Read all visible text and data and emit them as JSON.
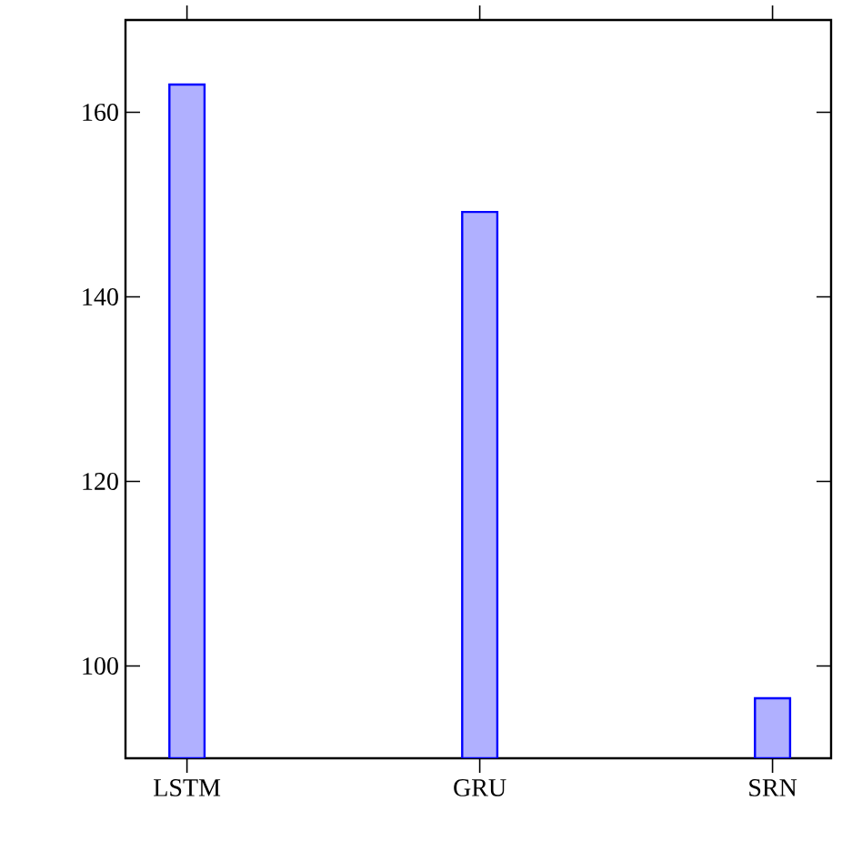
{
  "chart_data": {
    "type": "bar",
    "categories": [
      "LSTM",
      "GRU",
      "SRN"
    ],
    "values": [
      163,
      149.2,
      96.5
    ],
    "color": "#b0b0ff",
    "ylim": [
      90,
      170
    ],
    "yticks": [
      100,
      120,
      140,
      160
    ]
  }
}
